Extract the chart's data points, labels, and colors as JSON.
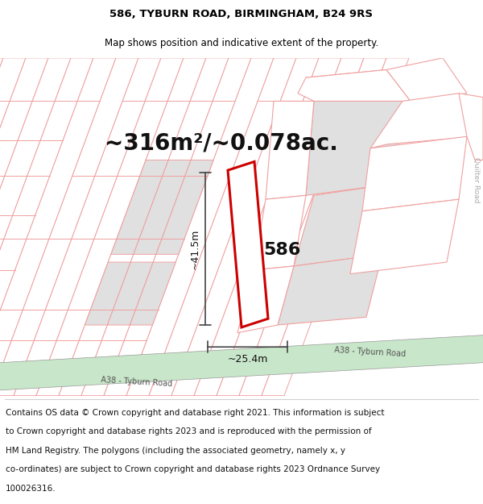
{
  "title_line1": "586, TYBURN ROAD, BIRMINGHAM, B24 9RS",
  "title_line2": "Map shows position and indicative extent of the property.",
  "area_text": "~316m²/~0.078ac.",
  "dim_height": "~41.5m",
  "dim_width": "~25.4m",
  "label_586": "586",
  "road_label": "A38 - Tyburn Road",
  "road_label2": "A38 - Tyburn Road",
  "quilter_label": "Quilter Road",
  "footer_lines": [
    "Contains OS data © Crown copyright and database right 2021. This information is subject",
    "to Crown copyright and database rights 2023 and is reproduced with the permission of",
    "HM Land Registry. The polygons (including the associated geometry, namely x, y",
    "co-ordinates) are subject to Crown copyright and database rights 2023 Ordnance Survey",
    "100026316."
  ],
  "bg_color": "#ffffff",
  "map_bg": "#ffffff",
  "plot_color": "#ffffff",
  "plot_edge_color": "#cc0000",
  "road_fill": "#c8e6c9",
  "parcel_fill": "#e0e0e0",
  "parcel_edge": "#f0a0a0",
  "parcel_edge_light": "#f5c0c0",
  "dim_line_color": "#444444",
  "title_fontsize": 9.5,
  "subtitle_fontsize": 8.5,
  "area_fontsize": 20,
  "dim_fontsize": 9,
  "label_fontsize": 16,
  "footer_fontsize": 7.5
}
